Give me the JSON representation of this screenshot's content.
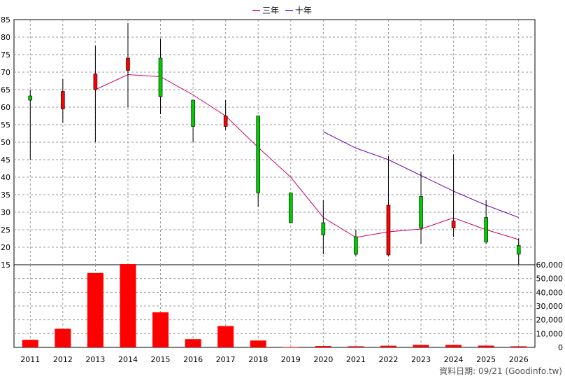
{
  "chart_data": [
    {
      "type": "candlestick",
      "legend": {
        "placement": "top-center",
        "entries": [
          {
            "name": "三年",
            "color": "#cc0066"
          },
          {
            "name": "十年",
            "color": "#6a0dad"
          }
        ]
      },
      "ylim": [
        15,
        85
      ],
      "yticks": [
        15,
        20,
        25,
        30,
        35,
        40,
        45,
        50,
        55,
        60,
        65,
        70,
        75,
        80,
        85
      ],
      "grid": true,
      "colors": {
        "up": "#ff0000",
        "down": "#00cc00",
        "wick": "#000000"
      },
      "x": [
        "2011",
        "2012",
        "2013",
        "2014",
        "2015",
        "2016",
        "2017",
        "2018",
        "2019",
        "2020",
        "2021",
        "2022",
        "2023",
        "2024",
        "2025",
        "2026"
      ],
      "candles": [
        {
          "open": 62.0,
          "close": 63.2,
          "high": 65.0,
          "low": 45.0
        },
        {
          "open": 64.5,
          "close": 59.5,
          "high": 68.0,
          "low": 55.5
        },
        {
          "open": 69.5,
          "close": 65.0,
          "high": 77.5,
          "low": 50.0
        },
        {
          "open": 74.0,
          "close": 70.5,
          "high": 84.0,
          "low": 60.0
        },
        {
          "open": 63.0,
          "close": 74.0,
          "high": 79.5,
          "low": 58.0
        },
        {
          "open": 54.5,
          "close": 62.0,
          "high": 62.0,
          "low": 50.0
        },
        {
          "open": 57.5,
          "close": 54.5,
          "high": 62.0,
          "low": 53.5
        },
        {
          "open": 35.5,
          "close": 57.5,
          "high": 57.5,
          "low": 31.5
        },
        {
          "open": 27.0,
          "close": 35.5,
          "high": 35.5,
          "low": 27.0
        },
        {
          "open": 23.5,
          "close": 27.0,
          "high": 33.5,
          "low": 18.0
        },
        {
          "open": 18.0,
          "close": 23.0,
          "high": 25.0,
          "low": 17.5
        },
        {
          "open": 32.0,
          "close": 17.8,
          "high": 46.0,
          "low": 17.5
        },
        {
          "open": 25.5,
          "close": 34.5,
          "high": 41.5,
          "low": 21.0
        },
        {
          "open": 27.5,
          "close": 25.5,
          "high": 46.5,
          "low": 23.0
        },
        {
          "open": 21.5,
          "close": 28.5,
          "high": 33.5,
          "low": 21.0
        },
        {
          "open": 18.0,
          "close": 20.5,
          "high": 22.5,
          "low": 15.0
        }
      ],
      "series": [
        {
          "name": "三年",
          "values": [
            null,
            null,
            65.0,
            69.3,
            68.7,
            63.5,
            57.5,
            48.5,
            40.0,
            28.5,
            22.8,
            24.4,
            25.2,
            28.4,
            25.0,
            22.2
          ]
        },
        {
          "name": "十年",
          "values": [
            null,
            null,
            null,
            null,
            null,
            null,
            null,
            null,
            null,
            53.0,
            48.3,
            45.0,
            40.5,
            36.0,
            32.0,
            28.5
          ]
        }
      ]
    },
    {
      "type": "bar",
      "categories": [
        "2011",
        "2012",
        "2013",
        "2014",
        "2015",
        "2016",
        "2017",
        "2018",
        "2019",
        "2020",
        "2021",
        "2022",
        "2023",
        "2024",
        "2025",
        "2026"
      ],
      "values": [
        5500,
        13500,
        54000,
        60500,
        25500,
        6000,
        15500,
        5000,
        300,
        1000,
        800,
        1200,
        1800,
        1800,
        1300,
        800
      ],
      "ylim": [
        0,
        60000
      ],
      "yticks": [
        "0",
        "10,000",
        "20,000",
        "30,000",
        "40,000",
        "50,000",
        "60,000"
      ],
      "grid": true,
      "color": "#ff0000"
    }
  ],
  "footer": {
    "text": "資料日期: 09/21  (Goodinfo.tw)"
  }
}
